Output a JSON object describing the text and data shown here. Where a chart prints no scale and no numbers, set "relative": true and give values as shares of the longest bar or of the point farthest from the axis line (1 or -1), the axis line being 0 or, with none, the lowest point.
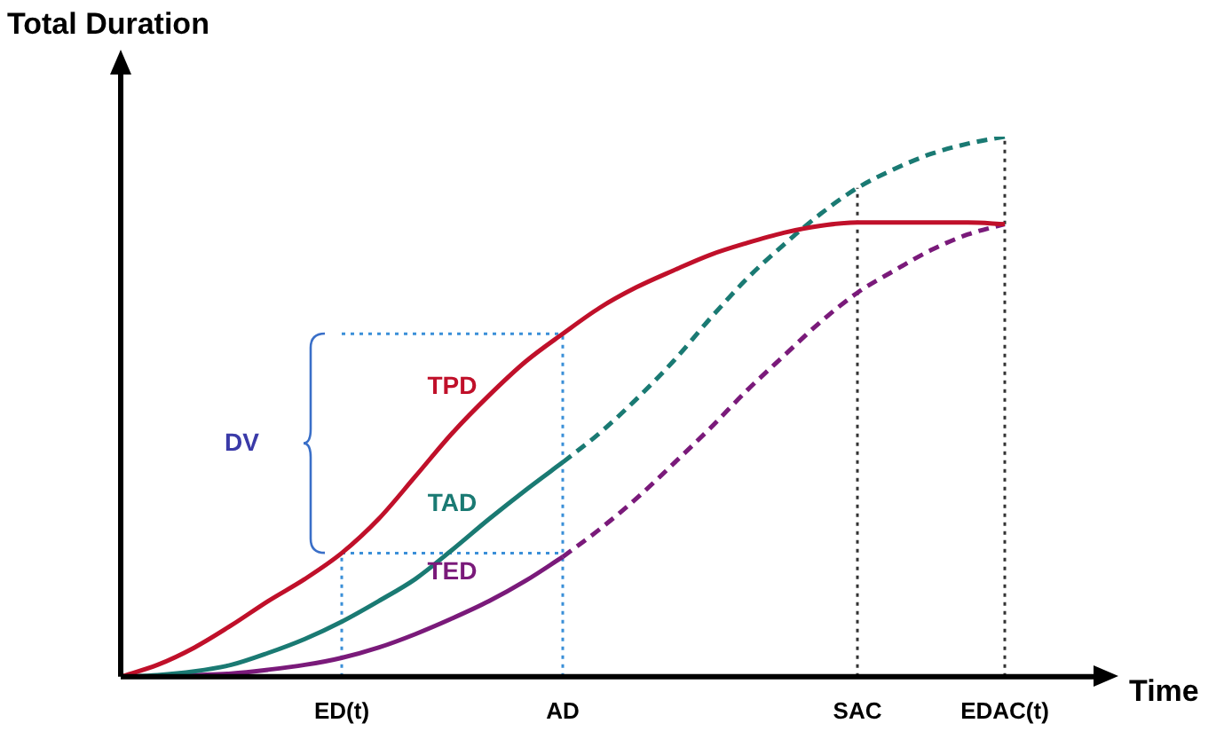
{
  "chart_data": {
    "type": "line",
    "relative": true,
    "xlabel": "Time",
    "ylabel": "Total Duration",
    "legend": false,
    "grid": false,
    "marker": "none",
    "categories": [
      null,
      null,
      null,
      null,
      null,
      null,
      "ED(t)",
      null,
      null,
      null,
      null,
      null,
      "AD",
      null,
      null,
      null,
      null,
      null,
      null,
      null,
      "SAC",
      null,
      null,
      null,
      "EDAC(t)"
    ],
    "series": [
      {
        "name": "TPD",
        "color": "#c0102a",
        "line_style": "solid",
        "values": [
          0,
          0.022,
          0.054,
          0.095,
          0.14,
          0.181,
          0.229,
          0.292,
          0.371,
          0.451,
          0.521,
          0.584,
          0.635,
          0.683,
          0.721,
          0.752,
          0.781,
          0.803,
          0.822,
          0.835,
          0.841,
          0.841,
          0.841,
          0.841,
          0.838
        ]
      },
      {
        "name": "TAD",
        "color": "#1a7a73",
        "line_style": "solid",
        "values": [
          0,
          0.003,
          0.01,
          0.022,
          0.044,
          0.07,
          0.102,
          0.14,
          0.181,
          0.235,
          0.292,
          0.346,
          0.397,
          null,
          null,
          null,
          null,
          null,
          null,
          null,
          null,
          null,
          null,
          null,
          null
        ]
      },
      {
        "color": "#1a7a73",
        "line_style": "dashed",
        "values": [
          null,
          null,
          null,
          null,
          null,
          null,
          null,
          null,
          null,
          null,
          null,
          null,
          0.397,
          0.451,
          0.514,
          0.584,
          0.663,
          0.737,
          0.8,
          0.857,
          0.905,
          0.94,
          0.968,
          0.987,
          1
        ]
      },
      {
        "name": "TED",
        "color": "#7a1a7a",
        "line_style": "solid",
        "values": [
          0,
          0,
          0.003,
          0.006,
          0.013,
          0.022,
          0.035,
          0.054,
          0.079,
          0.108,
          0.14,
          0.178,
          0.222,
          null,
          null,
          null,
          null,
          null,
          null,
          null,
          null,
          null,
          null,
          null,
          null
        ]
      },
      {
        "color": "#7a1a7a",
        "line_style": "dashed",
        "values": [
          null,
          null,
          null,
          null,
          null,
          null,
          null,
          null,
          null,
          null,
          null,
          null,
          0.222,
          0.273,
          0.33,
          0.394,
          0.46,
          0.53,
          0.594,
          0.657,
          0.711,
          0.752,
          0.79,
          0.819,
          0.838
        ]
      }
    ],
    "ref_lines": [
      {
        "axis": "x",
        "value": "ED(t)",
        "color": "#3a8fd8",
        "line_style": "dotted"
      },
      {
        "axis": "x",
        "value": "AD",
        "color": "#3a8fd8",
        "line_style": "dotted"
      },
      {
        "axis": "x",
        "value": "SAC",
        "color": "#333333",
        "line_style": "dotted"
      },
      {
        "axis": "x",
        "value": "EDAC(t)",
        "color": "#333333",
        "line_style": "dotted"
      },
      {
        "axis": "y",
        "value": 0.229,
        "color": "#3a8fd8",
        "line_style": "dotted"
      },
      {
        "axis": "y",
        "value": 0.635,
        "color": "#3a8fd8",
        "line_style": "dotted"
      }
    ],
    "annotations": [
      "DV"
    ]
  }
}
